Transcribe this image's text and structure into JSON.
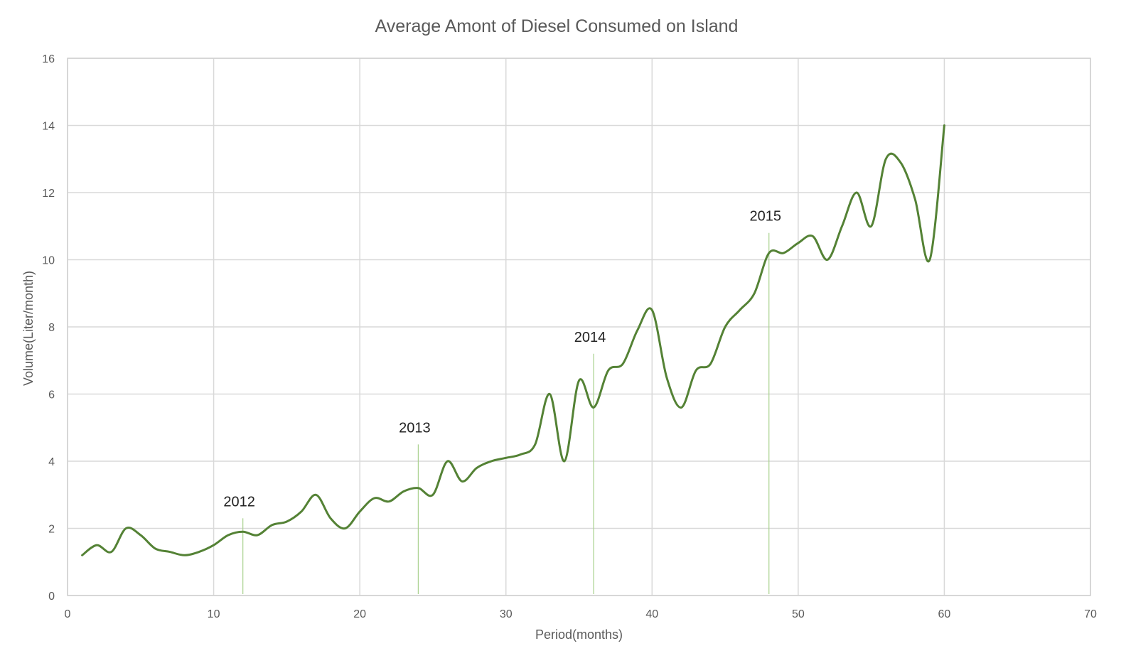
{
  "chart_data": {
    "type": "line",
    "title": "Average Amont of Diesel Consumed  on Island",
    "xlabel": "Period(months)",
    "ylabel": "Volume(Liter/month)",
    "xlim": [
      0,
      70
    ],
    "ylim": [
      0,
      16
    ],
    "x_ticks": [
      "0",
      "10",
      "20",
      "30",
      "40",
      "50",
      "60",
      "70"
    ],
    "y_ticks": [
      "0",
      "2",
      "4",
      "6",
      "8",
      "10",
      "12",
      "14",
      "16"
    ],
    "x_tick_values": [
      0,
      10,
      20,
      30,
      40,
      50,
      60,
      70
    ],
    "y_tick_values": [
      0,
      2,
      4,
      6,
      8,
      10,
      12,
      14,
      16
    ],
    "grid": true,
    "series": [
      {
        "color": "#548235",
        "x": [
          1,
          2,
          3,
          4,
          5,
          6,
          7,
          8,
          9,
          10,
          11,
          12,
          13,
          14,
          15,
          16,
          17,
          18,
          19,
          20,
          21,
          22,
          23,
          24,
          25,
          26,
          27,
          28,
          29,
          30,
          31,
          32,
          33,
          34,
          35,
          36,
          37,
          38,
          39,
          40,
          41,
          42,
          43,
          44,
          45,
          46,
          47,
          48,
          49,
          50,
          51,
          52,
          53,
          54,
          55,
          56,
          57,
          58,
          59,
          60
        ],
        "values": [
          1.2,
          1.5,
          1.3,
          2.0,
          1.8,
          1.4,
          1.3,
          1.2,
          1.3,
          1.5,
          1.8,
          1.9,
          1.8,
          2.1,
          2.2,
          2.5,
          3.0,
          2.3,
          2.0,
          2.5,
          2.9,
          2.8,
          3.1,
          3.2,
          3.0,
          4.0,
          3.4,
          3.8,
          4.0,
          4.1,
          4.2,
          4.5,
          6.0,
          4.0,
          6.4,
          5.6,
          6.7,
          6.9,
          7.9,
          8.5,
          6.5,
          5.6,
          6.7,
          6.9,
          8.0,
          8.5,
          9.0,
          10.2,
          10.2,
          10.5,
          10.7,
          10.0,
          11.0,
          12.0,
          11.0,
          13.0,
          12.9,
          11.8,
          10.0,
          14.0
        ]
      }
    ],
    "annotations": [
      {
        "label": "2012",
        "x": 12,
        "y_top": 2.3
      },
      {
        "label": "2013",
        "x": 24,
        "y_top": 4.5
      },
      {
        "label": "2014",
        "x": 36,
        "y_top": 7.2
      },
      {
        "label": "2015",
        "x": 48,
        "y_top": 10.8
      }
    ],
    "annotation_color": "#a9d18e"
  }
}
